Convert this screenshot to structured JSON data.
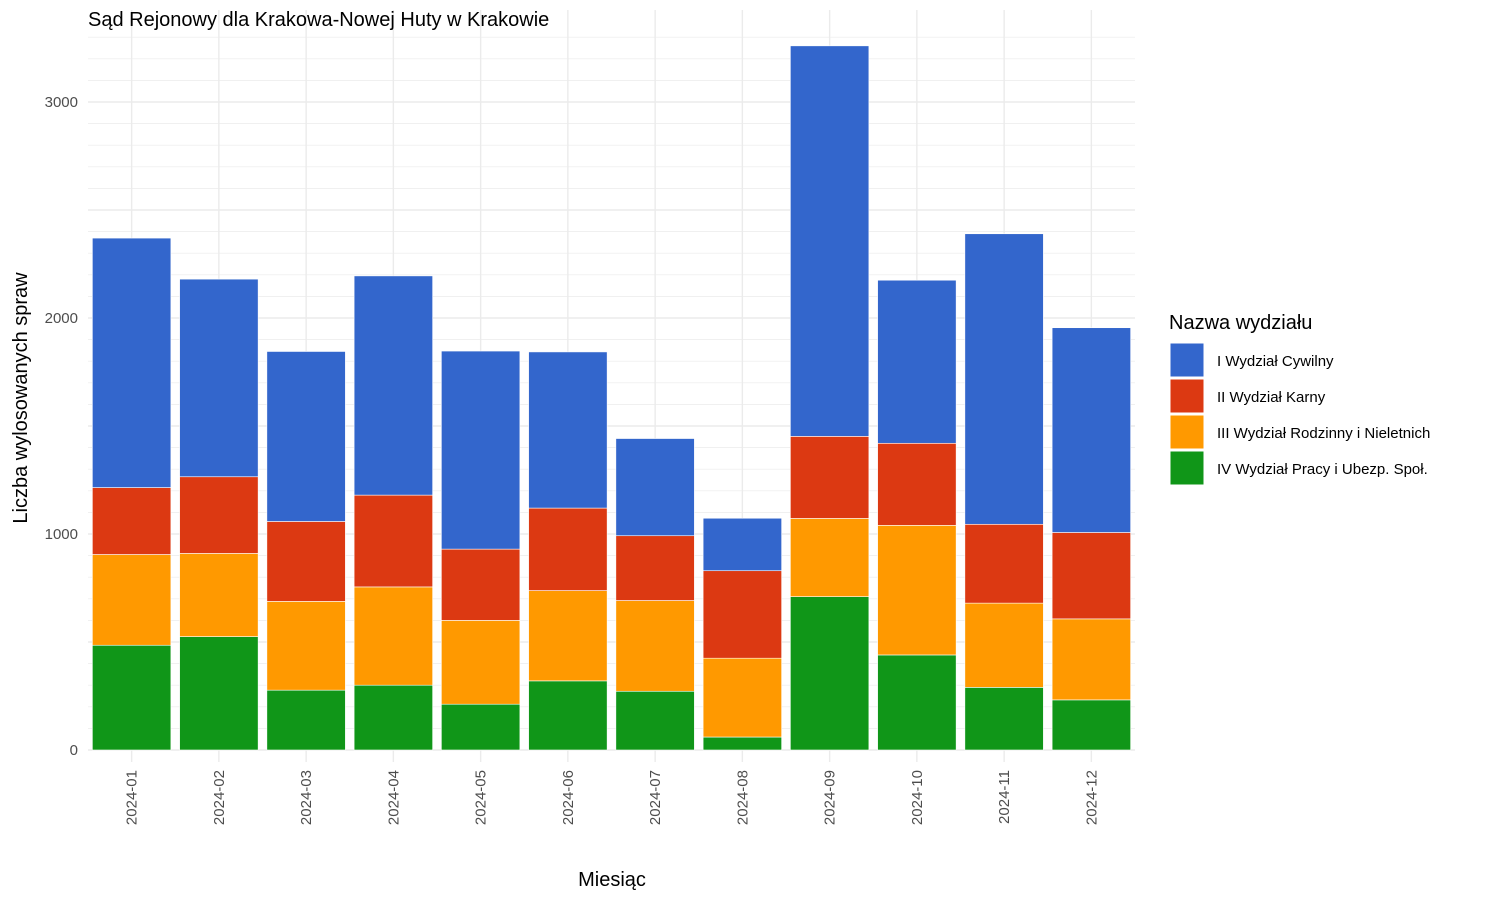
{
  "chart_data": {
    "type": "bar",
    "stacked": true,
    "title": "Sąd Rejonowy dla Krakowa-Nowej Huty w Krakowie",
    "xlabel": "Miesiąc",
    "ylabel": "Liczba wylosowanych spraw",
    "ylim": [
      0,
      3300
    ],
    "yticks": [
      0,
      1000,
      2000,
      3000
    ],
    "grid": true,
    "legend_position": "right",
    "legend_title": "Nazwa wydziału",
    "categories": [
      "2024-01",
      "2024-02",
      "2024-03",
      "2024-04",
      "2024-05",
      "2024-06",
      "2024-07",
      "2024-08",
      "2024-09",
      "2024-10",
      "2024-11",
      "2024-12"
    ],
    "series": [
      {
        "name": "IV Wydział Pracy i Ubezp. Społ.",
        "color": "#109618",
        "values": [
          485,
          525,
          277,
          300,
          212,
          320,
          272,
          60,
          710,
          440,
          290,
          232
        ]
      },
      {
        "name": "III Wydział Rodzinny i Nieletnich",
        "color": "#ff9900",
        "values": [
          420,
          385,
          411,
          455,
          388,
          418,
          420,
          365,
          362,
          600,
          390,
          375
        ]
      },
      {
        "name": "II Wydział Karny",
        "color": "#dc3912",
        "values": [
          310,
          355,
          370,
          425,
          330,
          382,
          300,
          405,
          380,
          380,
          365,
          400
        ]
      },
      {
        "name": "I Wydział Cywilny",
        "color": "#3366cc",
        "values": [
          1155,
          915,
          787,
          1015,
          917,
          723,
          450,
          243,
          1808,
          755,
          1345,
          948
        ]
      }
    ]
  }
}
